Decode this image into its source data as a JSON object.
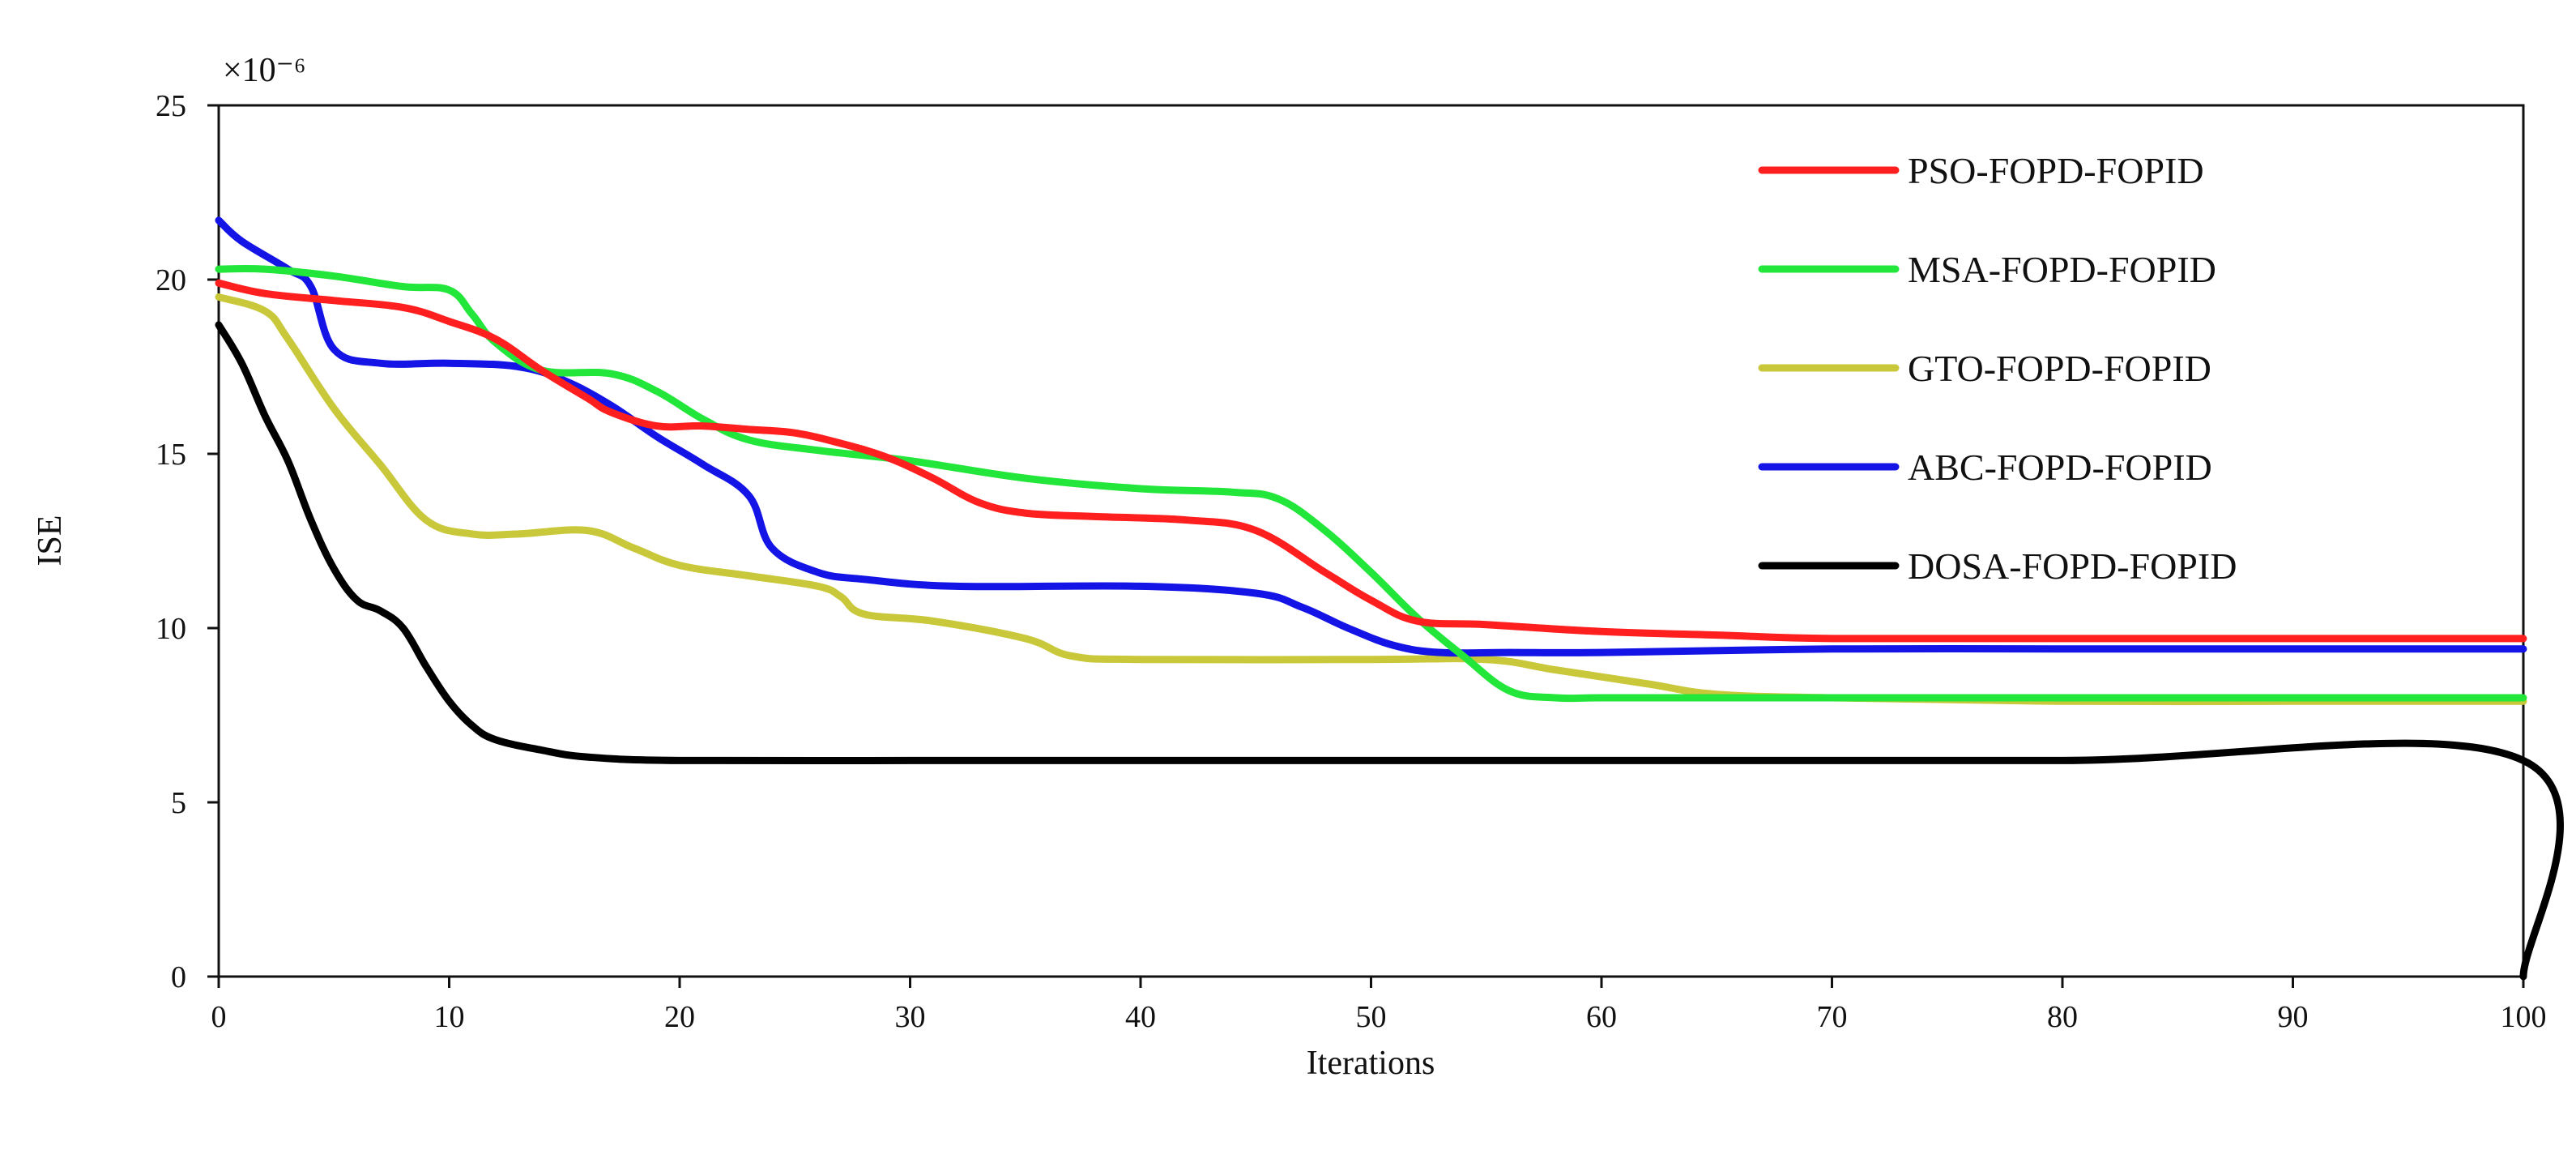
{
  "chart_data": {
    "type": "line",
    "title": "",
    "xlabel": "Iterations",
    "ylabel": "ISE",
    "y_exponent_label": "×10⁻⁶",
    "xlim": [
      0,
      100
    ],
    "ylim": [
      0,
      25
    ],
    "x_ticks": [
      "0",
      "10",
      "20",
      "30",
      "40",
      "50",
      "60",
      "70",
      "80",
      "90",
      "100"
    ],
    "y_ticks": [
      "0",
      "5",
      "10",
      "15",
      "20",
      "25"
    ],
    "grid": false,
    "legend_position": "top-right",
    "series": [
      {
        "name": "PSO-FOPD-FOPID",
        "color": "#ff1f1f",
        "points": [
          [
            0,
            19.9
          ],
          [
            2,
            19.6
          ],
          [
            5,
            19.4
          ],
          [
            8,
            19.2
          ],
          [
            10,
            18.8
          ],
          [
            12,
            18.3
          ],
          [
            14,
            17.4
          ],
          [
            16,
            16.6
          ],
          [
            17,
            16.2
          ],
          [
            19,
            15.8
          ],
          [
            21,
            15.8
          ],
          [
            23,
            15.7
          ],
          [
            25,
            15.6
          ],
          [
            27,
            15.3
          ],
          [
            29,
            14.9
          ],
          [
            31,
            14.3
          ],
          [
            33,
            13.6
          ],
          [
            35,
            13.3
          ],
          [
            38,
            13.2
          ],
          [
            42,
            13.1
          ],
          [
            45,
            12.8
          ],
          [
            48,
            11.6
          ],
          [
            50,
            10.8
          ],
          [
            52,
            10.2
          ],
          [
            55,
            10.1
          ],
          [
            60,
            9.9
          ],
          [
            65,
            9.8
          ],
          [
            70,
            9.7
          ],
          [
            80,
            9.7
          ],
          [
            90,
            9.7
          ],
          [
            100,
            9.7
          ]
        ]
      },
      {
        "name": "MSA-FOPD-FOPID",
        "color": "#22e63a",
        "points": [
          [
            0,
            20.3
          ],
          [
            2,
            20.3
          ],
          [
            5,
            20.1
          ],
          [
            8,
            19.8
          ],
          [
            10,
            19.7
          ],
          [
            11,
            19.0
          ],
          [
            12,
            18.2
          ],
          [
            14,
            17.4
          ],
          [
            17,
            17.3
          ],
          [
            19,
            16.8
          ],
          [
            21,
            16.0
          ],
          [
            23,
            15.4
          ],
          [
            26,
            15.1
          ],
          [
            30,
            14.8
          ],
          [
            35,
            14.3
          ],
          [
            40,
            14.0
          ],
          [
            44,
            13.9
          ],
          [
            46,
            13.7
          ],
          [
            48,
            12.8
          ],
          [
            50,
            11.6
          ],
          [
            52,
            10.3
          ],
          [
            54,
            9.2
          ],
          [
            56,
            8.2
          ],
          [
            58,
            8.0
          ],
          [
            60,
            8.0
          ],
          [
            65,
            8.0
          ],
          [
            70,
            8.0
          ],
          [
            80,
            8.0
          ],
          [
            90,
            8.0
          ],
          [
            100,
            8.0
          ]
        ]
      },
      {
        "name": "GTO-FOPD-FOPID",
        "color": "#c8c83a",
        "points": [
          [
            0,
            19.5
          ],
          [
            2,
            19.1
          ],
          [
            3,
            18.3
          ],
          [
            5,
            16.3
          ],
          [
            7,
            14.7
          ],
          [
            9,
            13.1
          ],
          [
            11,
            12.7
          ],
          [
            13,
            12.7
          ],
          [
            16,
            12.8
          ],
          [
            18,
            12.3
          ],
          [
            20,
            11.8
          ],
          [
            23,
            11.5
          ],
          [
            26,
            11.2
          ],
          [
            27,
            10.9
          ],
          [
            28,
            10.4
          ],
          [
            31,
            10.2
          ],
          [
            35,
            9.7
          ],
          [
            37,
            9.2
          ],
          [
            40,
            9.1
          ],
          [
            50,
            9.1
          ],
          [
            55,
            9.1
          ],
          [
            58,
            8.8
          ],
          [
            62,
            8.4
          ],
          [
            65,
            8.1
          ],
          [
            70,
            8.0
          ],
          [
            80,
            7.9
          ],
          [
            90,
            7.9
          ],
          [
            100,
            7.9
          ]
        ]
      },
      {
        "name": "ABC-FOPD-FOPID",
        "color": "#1414e6",
        "points": [
          [
            0,
            21.7
          ],
          [
            1,
            21.1
          ],
          [
            3,
            20.3
          ],
          [
            4,
            19.8
          ],
          [
            5,
            18.0
          ],
          [
            7,
            17.6
          ],
          [
            10,
            17.6
          ],
          [
            13,
            17.5
          ],
          [
            15,
            17.1
          ],
          [
            17,
            16.4
          ],
          [
            19,
            15.5
          ],
          [
            21,
            14.7
          ],
          [
            23,
            13.8
          ],
          [
            24,
            12.3
          ],
          [
            26,
            11.6
          ],
          [
            28,
            11.4
          ],
          [
            32,
            11.2
          ],
          [
            40,
            11.2
          ],
          [
            45,
            11.0
          ],
          [
            47,
            10.6
          ],
          [
            49,
            10.0
          ],
          [
            51,
            9.5
          ],
          [
            53,
            9.3
          ],
          [
            56,
            9.3
          ],
          [
            60,
            9.3
          ],
          [
            70,
            9.4
          ],
          [
            80,
            9.4
          ],
          [
            90,
            9.4
          ],
          [
            100,
            9.4
          ]
        ]
      },
      {
        "name": "DOSA-FOPD-FOPID",
        "color": "#000000",
        "points": [
          [
            0,
            18.7
          ],
          [
            1,
            17.6
          ],
          [
            2,
            16.1
          ],
          [
            3,
            14.8
          ],
          [
            4,
            13.1
          ],
          [
            5,
            11.7
          ],
          [
            6,
            10.8
          ],
          [
            7,
            10.5
          ],
          [
            8,
            10.0
          ],
          [
            9,
            8.9
          ],
          [
            10,
            7.9
          ],
          [
            11,
            7.2
          ],
          [
            12,
            6.8
          ],
          [
            14,
            6.5
          ],
          [
            16,
            6.3
          ],
          [
            20,
            6.2
          ],
          [
            30,
            6.2
          ],
          [
            40,
            6.2
          ],
          [
            60,
            6.2
          ],
          [
            80,
            6.2
          ],
          [
            100,
            6.2
          ],
          [
            100,
            0
          ]
        ]
      }
    ]
  }
}
